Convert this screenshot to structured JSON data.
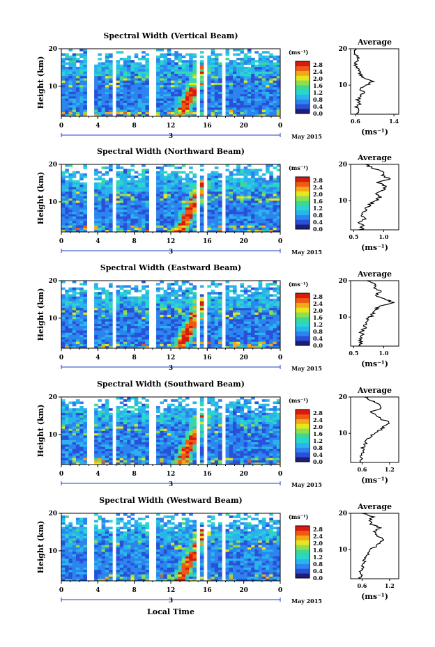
{
  "chart_data": [
    {
      "type": "heatmap",
      "title": "Spectral Width (Vertical Beam)",
      "ylabel": "Height (km)",
      "x_ticks": [
        "0",
        "4",
        "8",
        "12",
        "16",
        "20",
        "0"
      ],
      "y_ticks": [
        "20",
        "10"
      ],
      "xlim": [
        0,
        24
      ],
      "ylim": [
        2,
        20
      ],
      "date_marker": "3",
      "date_label": "May 2015",
      "colorbar": {
        "unit": "(ms⁻¹)",
        "ticks": [
          "2.8",
          "2.4",
          "2.0",
          "1.6",
          "1.2",
          "0.8",
          "0.4",
          "0.0"
        ],
        "range": [
          0,
          3.0
        ]
      },
      "gaps_hours": [
        [
          3.0,
          3.5
        ],
        [
          5.5,
          5.9
        ],
        [
          9.5,
          10.3
        ],
        [
          14.8,
          15.1
        ],
        [
          15.5,
          15.9
        ],
        [
          17.5,
          17.9
        ]
      ],
      "features": {
        "enhanced_band_hours": [
          13.0,
          16.5
        ],
        "max_value": 2.8
      },
      "average_profile": {
        "title": "Average",
        "xlabel": "(ms⁻¹)",
        "x_ticks": [
          "0.6",
          "1.4"
        ],
        "y_ticks": [
          "20",
          "10"
        ],
        "xlim": [
          0.5,
          1.5
        ],
        "height_km": [
          2,
          3,
          4,
          5,
          6,
          7,
          8,
          9,
          10,
          11,
          12,
          13,
          14,
          15,
          16,
          17,
          18,
          19,
          20
        ],
        "values": [
          0.62,
          0.66,
          0.6,
          0.7,
          0.64,
          0.72,
          0.78,
          0.7,
          0.85,
          0.95,
          0.75,
          0.7,
          0.65,
          0.62,
          0.6,
          0.66,
          0.62,
          0.6,
          0.58
        ]
      }
    },
    {
      "type": "heatmap",
      "title": "Spectral Width (Northward Beam)",
      "ylabel": "Height (km)",
      "x_ticks": [
        "0",
        "4",
        "8",
        "12",
        "16",
        "20",
        "0"
      ],
      "y_ticks": [
        "20",
        "10"
      ],
      "xlim": [
        0,
        24
      ],
      "ylim": [
        2,
        20
      ],
      "date_marker": "3",
      "date_label": "May 2015",
      "colorbar": {
        "unit": "(ms⁻¹)",
        "ticks": [
          "2.8",
          "2.4",
          "2.0",
          "1.6",
          "1.2",
          "0.8",
          "0.4",
          "0.0"
        ],
        "range": [
          0,
          3.0
        ]
      },
      "gaps_hours": [
        [
          3.0,
          3.5
        ],
        [
          5.5,
          5.9
        ],
        [
          9.5,
          10.3
        ],
        [
          14.8,
          15.1
        ],
        [
          15.5,
          15.9
        ],
        [
          17.5,
          17.9
        ]
      ],
      "features": {
        "enhanced_band_hours": [
          13.0,
          16.5
        ],
        "max_value": 2.8
      },
      "average_profile": {
        "title": "Average",
        "xlabel": "(ms⁻¹)",
        "x_ticks": [
          "0.5",
          "1.0"
        ],
        "y_ticks": [
          "20",
          "10"
        ],
        "xlim": [
          0.45,
          1.25
        ],
        "height_km": [
          2,
          3,
          4,
          5,
          6,
          7,
          8,
          9,
          10,
          11,
          12,
          13,
          14,
          15,
          16,
          17,
          18,
          19,
          20
        ],
        "values": [
          0.62,
          0.65,
          0.6,
          0.68,
          0.62,
          0.7,
          0.72,
          0.78,
          0.85,
          0.95,
          0.88,
          1.0,
          1.05,
          0.9,
          1.1,
          0.95,
          1.0,
          0.8,
          0.7
        ]
      }
    },
    {
      "type": "heatmap",
      "title": "Spectral Width (Eastward Beam)",
      "ylabel": "Height (km)",
      "x_ticks": [
        "0",
        "4",
        "8",
        "12",
        "16",
        "20",
        "0"
      ],
      "y_ticks": [
        "20",
        "10"
      ],
      "xlim": [
        0,
        24
      ],
      "ylim": [
        2,
        20
      ],
      "date_marker": "3",
      "date_label": "May 2015",
      "colorbar": {
        "unit": "(ms⁻¹)",
        "ticks": [
          "2.8",
          "2.4",
          "2.0",
          "1.6",
          "1.2",
          "0.8",
          "0.4",
          "0.0"
        ],
        "range": [
          0,
          3.0
        ]
      },
      "gaps_hours": [
        [
          3.0,
          3.5
        ],
        [
          5.5,
          5.9
        ],
        [
          9.5,
          10.3
        ],
        [
          14.8,
          15.1
        ],
        [
          15.5,
          15.9
        ],
        [
          17.5,
          17.9
        ]
      ],
      "features": {
        "enhanced_band_hours": [
          13.0,
          16.5
        ],
        "max_value": 2.8
      },
      "average_profile": {
        "title": "Average",
        "xlabel": "(ms⁻¹)",
        "x_ticks": [
          "0.5",
          "1.0"
        ],
        "y_ticks": [
          "20",
          "10"
        ],
        "xlim": [
          0.45,
          1.25
        ],
        "height_km": [
          2,
          3,
          4,
          5,
          6,
          7,
          8,
          9,
          10,
          11,
          12,
          13,
          14,
          15,
          16,
          17,
          18,
          19,
          20
        ],
        "values": [
          0.6,
          0.62,
          0.58,
          0.66,
          0.62,
          0.68,
          0.7,
          0.72,
          0.78,
          0.82,
          0.85,
          0.95,
          1.15,
          1.0,
          0.85,
          0.95,
          0.8,
          0.9,
          0.72
        ]
      }
    },
    {
      "type": "heatmap",
      "title": "Spectral Width (Southward Beam)",
      "ylabel": "Height (km)",
      "x_ticks": [
        "0",
        "4",
        "8",
        "12",
        "16",
        "20",
        "0"
      ],
      "y_ticks": [
        "20",
        "10"
      ],
      "xlim": [
        0,
        24
      ],
      "ylim": [
        2,
        20
      ],
      "date_marker": "3",
      "date_label": "May 2015",
      "colorbar": {
        "unit": "(ms⁻¹)",
        "ticks": [
          "2.8",
          "2.4",
          "2.0",
          "1.6",
          "1.2",
          "0.8",
          "0.4",
          "0.0"
        ],
        "range": [
          0,
          3.0
        ]
      },
      "gaps_hours": [
        [
          3.0,
          3.5
        ],
        [
          5.5,
          5.9
        ],
        [
          9.5,
          10.3
        ],
        [
          14.8,
          15.1
        ],
        [
          15.5,
          15.9
        ],
        [
          17.5,
          17.9
        ]
      ],
      "features": {
        "enhanced_band_hours": [
          13.0,
          16.5
        ],
        "max_value": 2.8
      },
      "average_profile": {
        "title": "Average",
        "xlabel": "(ms⁻¹)",
        "x_ticks": [
          "0.6",
          "1.2"
        ],
        "y_ticks": [
          "20",
          "10"
        ],
        "xlim": [
          0.35,
          1.4
        ],
        "height_km": [
          2,
          3,
          4,
          5,
          6,
          7,
          8,
          9,
          10,
          11,
          12,
          13,
          14,
          15,
          16,
          17,
          18,
          19,
          20
        ],
        "values": [
          0.55,
          0.6,
          0.56,
          0.62,
          0.6,
          0.66,
          0.7,
          0.78,
          0.85,
          1.0,
          1.1,
          1.2,
          1.0,
          0.9,
          0.8,
          1.05,
          0.95,
          0.8,
          0.65
        ]
      }
    },
    {
      "type": "heatmap",
      "title": "Spectral Width (Westward Beam)",
      "ylabel": "Height (km)",
      "xlabel": "Local Time",
      "x_ticks": [
        "0",
        "4",
        "8",
        "12",
        "16",
        "20",
        "0"
      ],
      "y_ticks": [
        "20",
        "10"
      ],
      "xlim": [
        0,
        24
      ],
      "ylim": [
        2,
        20
      ],
      "date_marker": "3",
      "date_label": "May 2015",
      "colorbar": {
        "unit": "(ms⁻¹)",
        "ticks": [
          "2.8",
          "2.4",
          "2.0",
          "1.6",
          "1.2",
          "0.8",
          "0.4",
          "0.0"
        ],
        "range": [
          0,
          3.0
        ]
      },
      "gaps_hours": [
        [
          3.0,
          3.5
        ],
        [
          5.5,
          5.9
        ],
        [
          9.5,
          10.3
        ],
        [
          14.8,
          15.1
        ],
        [
          15.5,
          15.9
        ],
        [
          17.5,
          17.9
        ]
      ],
      "features": {
        "enhanced_band_hours": [
          13.0,
          16.5
        ],
        "max_value": 2.8
      },
      "average_profile": {
        "title": "Average",
        "xlabel": "(ms⁻¹)",
        "x_ticks": [
          "0.6",
          "1.2"
        ],
        "y_ticks": [
          "20",
          "10"
        ],
        "xlim": [
          0.35,
          1.4
        ],
        "height_km": [
          2,
          3,
          4,
          5,
          6,
          7,
          8,
          9,
          10,
          11,
          12,
          13,
          14,
          15,
          16,
          17,
          18,
          19,
          20
        ],
        "values": [
          0.55,
          0.58,
          0.56,
          0.6,
          0.62,
          0.65,
          0.7,
          0.72,
          0.8,
          0.9,
          1.0,
          1.05,
          0.9,
          0.85,
          1.0,
          0.8,
          0.75,
          0.85,
          0.6
        ]
      }
    }
  ],
  "colors": {
    "colormap": [
      "#1e1e78",
      "#2850d8",
      "#2c84ee",
      "#2ab4ec",
      "#2ad4d0",
      "#40d890",
      "#8ce050",
      "#e6e620",
      "#f4a818",
      "#ee5a12",
      "#d81a10"
    ],
    "date_axis": "#1a3cc8"
  }
}
